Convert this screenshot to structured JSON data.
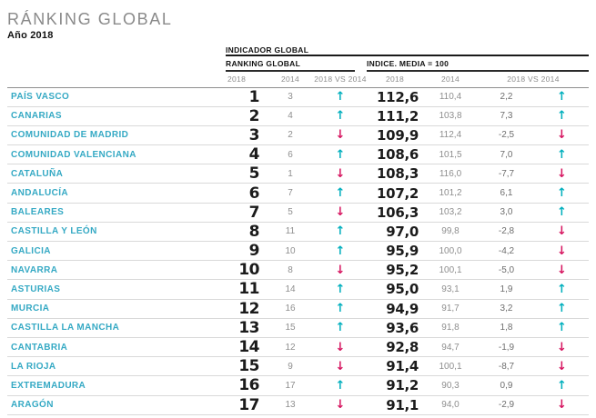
{
  "page": {
    "title": "RÁNKING GLOBAL",
    "subtitle": "Año 2018"
  },
  "colors": {
    "teal": "#35a9c4",
    "arrow_up": "#00afbd",
    "arrow_down": "#d6145f",
    "value_dark": "#1b1b1b",
    "value_gray": "#8e8e8e"
  },
  "chart_data": {
    "type": "table",
    "title": "RÁNKING GLOBAL",
    "subtitle": "Año 2018",
    "group_header": "INDICADOR GLOBAL",
    "sections": [
      {
        "label": "RANKING GLOBAL",
        "columns": [
          "2018",
          "2014",
          "2018 VS 2014"
        ]
      },
      {
        "label": "INDICE. MEDIA = 100",
        "columns": [
          "2018",
          "2014",
          "2018 VS 2014"
        ]
      }
    ],
    "rows": [
      {
        "region": "PAÍS VASCO",
        "rank_2018": "1",
        "rank_2014": "3",
        "rank_trend": "up",
        "index_2018": "112,6",
        "index_2014": "110,4",
        "index_diff": "2,2",
        "index_trend": "up"
      },
      {
        "region": "CANARIAS",
        "rank_2018": "2",
        "rank_2014": "4",
        "rank_trend": "up",
        "index_2018": "111,2",
        "index_2014": "103,8",
        "index_diff": "7,3",
        "index_trend": "up"
      },
      {
        "region": "COMUNIDAD DE MADRID",
        "rank_2018": "3",
        "rank_2014": "2",
        "rank_trend": "down",
        "index_2018": "109,9",
        "index_2014": "112,4",
        "index_diff": "-2,5",
        "index_trend": "down"
      },
      {
        "region": "COMUNIDAD VALENCIANA",
        "rank_2018": "4",
        "rank_2014": "6",
        "rank_trend": "up",
        "index_2018": "108,6",
        "index_2014": "101,5",
        "index_diff": "7,0",
        "index_trend": "up"
      },
      {
        "region": "CATALUÑA",
        "rank_2018": "5",
        "rank_2014": "1",
        "rank_trend": "down",
        "index_2018": "108,3",
        "index_2014": "116,0",
        "index_diff": "-7,7",
        "index_trend": "down"
      },
      {
        "region": "ANDALUCÍA",
        "rank_2018": "6",
        "rank_2014": "7",
        "rank_trend": "up",
        "index_2018": "107,2",
        "index_2014": "101,2",
        "index_diff": "6,1",
        "index_trend": "up"
      },
      {
        "region": "BALEARES",
        "rank_2018": "7",
        "rank_2014": "5",
        "rank_trend": "down",
        "index_2018": "106,3",
        "index_2014": "103,2",
        "index_diff": "3,0",
        "index_trend": "up"
      },
      {
        "region": "CASTILLA Y LEÓN",
        "rank_2018": "8",
        "rank_2014": "11",
        "rank_trend": "up",
        "index_2018": "97,0",
        "index_2014": "99,8",
        "index_diff": "-2,8",
        "index_trend": "down"
      },
      {
        "region": "GALICIA",
        "rank_2018": "9",
        "rank_2014": "10",
        "rank_trend": "up",
        "index_2018": "95,9",
        "index_2014": "100,0",
        "index_diff": "-4,2",
        "index_trend": "down"
      },
      {
        "region": "NAVARRA",
        "rank_2018": "10",
        "rank_2014": "8",
        "rank_trend": "down",
        "index_2018": "95,2",
        "index_2014": "100,1",
        "index_diff": "-5,0",
        "index_trend": "down"
      },
      {
        "region": "ASTURIAS",
        "rank_2018": "11",
        "rank_2014": "14",
        "rank_trend": "up",
        "index_2018": "95,0",
        "index_2014": "93,1",
        "index_diff": "1,9",
        "index_trend": "up"
      },
      {
        "region": "MURCIA",
        "rank_2018": "12",
        "rank_2014": "16",
        "rank_trend": "up",
        "index_2018": "94,9",
        "index_2014": "91,7",
        "index_diff": "3,2",
        "index_trend": "up"
      },
      {
        "region": "CASTILLA LA MANCHA",
        "rank_2018": "13",
        "rank_2014": "15",
        "rank_trend": "up",
        "index_2018": "93,6",
        "index_2014": "91,8",
        "index_diff": "1,8",
        "index_trend": "up"
      },
      {
        "region": "CANTABRIA",
        "rank_2018": "14",
        "rank_2014": "12",
        "rank_trend": "down",
        "index_2018": "92,8",
        "index_2014": "94,7",
        "index_diff": "-1,9",
        "index_trend": "down"
      },
      {
        "region": "LA RIOJA",
        "rank_2018": "15",
        "rank_2014": "9",
        "rank_trend": "down",
        "index_2018": "91,4",
        "index_2014": "100,1",
        "index_diff": "-8,7",
        "index_trend": "down"
      },
      {
        "region": "EXTREMADURA",
        "rank_2018": "16",
        "rank_2014": "17",
        "rank_trend": "up",
        "index_2018": "91,2",
        "index_2014": "90,3",
        "index_diff": "0,9",
        "index_trend": "up"
      },
      {
        "region": "ARAGÓN",
        "rank_2018": "17",
        "rank_2014": "13",
        "rank_trend": "down",
        "index_2018": "91,1",
        "index_2014": "94,0",
        "index_diff": "-2,9",
        "index_trend": "down"
      }
    ],
    "arrow_glyphs": {
      "up": "↑",
      "down": "↓"
    }
  }
}
